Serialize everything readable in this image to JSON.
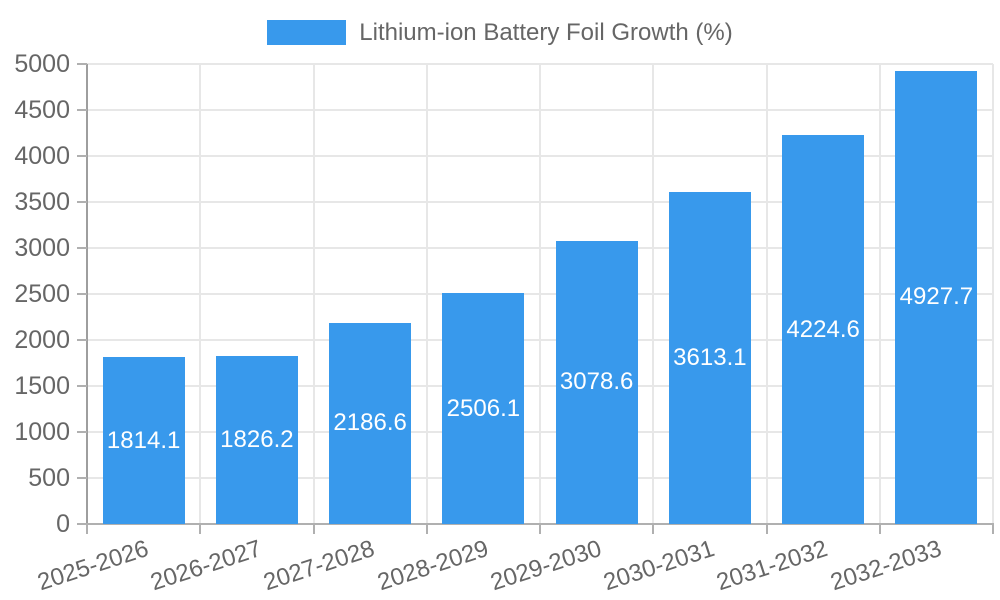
{
  "legend": {
    "series_label": "Lithium-ion Battery Foil Growth (%)",
    "swatch_color": "#3899EC"
  },
  "chart_data": {
    "type": "bar",
    "title": "Lithium-ion Battery Foil Growth (%)",
    "categories": [
      "2025-2026",
      "2026-2027",
      "2027-2028",
      "2028-2029",
      "2029-2030",
      "2030-2031",
      "2031-2032",
      "2032-2033"
    ],
    "values": [
      1814.1,
      1826.2,
      2186.6,
      2506.1,
      3078.6,
      3613.1,
      4224.6,
      4927.7
    ],
    "value_labels": [
      "1814.1",
      "1826.2",
      "2186.6",
      "2506.1",
      "3078.6",
      "3613.1",
      "4224.6",
      "4927.7"
    ],
    "xlabel": "",
    "ylabel": "",
    "ylim": [
      0,
      5000
    ],
    "ytick_step": 500,
    "ytick_labels": [
      "0",
      "500",
      "1000",
      "1500",
      "2000",
      "2500",
      "3000",
      "3500",
      "4000",
      "4500",
      "5000"
    ],
    "grid": true,
    "legend_position": "top-center",
    "x_tick_rotation_deg": -18,
    "value_label_position": "center-inside-bar",
    "colors": {
      "bar": "#3899EC",
      "axis_text": "#666666",
      "grid_line": "#e7e7e7",
      "axis_line_y": "#9e9e9e",
      "axis_line_x": "#b0b0b0",
      "tick_line": "#b0b0b0",
      "value_label": "#ffffff",
      "background": "#ffffff"
    }
  }
}
